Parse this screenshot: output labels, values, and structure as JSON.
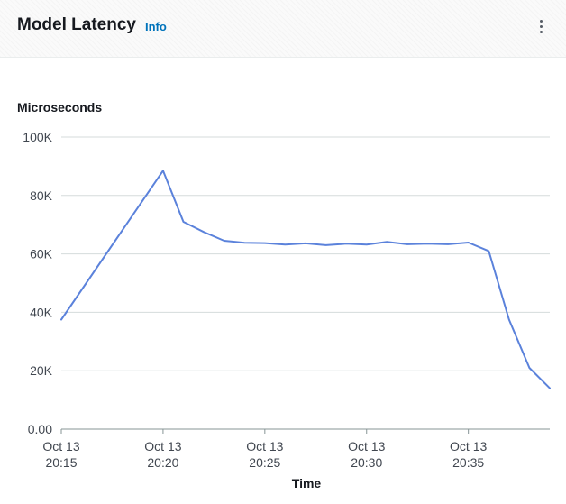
{
  "widget": {
    "title": "Model Latency",
    "info_label": "Info",
    "menu_icon": "kebab-menu-icon"
  },
  "colors": {
    "line": "#5b82db",
    "grid": "#d5dbdb",
    "info": "#0073bb",
    "text": "#16191f"
  },
  "chart_data": {
    "type": "line",
    "title": "Model Latency",
    "ylabel": "Microseconds",
    "xlabel": "Time",
    "ylim": [
      0,
      100000
    ],
    "y_ticks": [
      {
        "value": 0,
        "label": "0.00"
      },
      {
        "value": 20000,
        "label": "20K"
      },
      {
        "value": 40000,
        "label": "40K"
      },
      {
        "value": 60000,
        "label": "60K"
      },
      {
        "value": 80000,
        "label": "80K"
      },
      {
        "value": 100000,
        "label": "100K"
      }
    ],
    "x_ticks": [
      {
        "minute": 0,
        "line1": "Oct 13",
        "line2": "20:15"
      },
      {
        "minute": 5,
        "line1": "Oct 13",
        "line2": "20:20"
      },
      {
        "minute": 10,
        "line1": "Oct 13",
        "line2": "20:25"
      },
      {
        "minute": 15,
        "line1": "Oct 13",
        "line2": "20:30"
      },
      {
        "minute": 20,
        "line1": "Oct 13",
        "line2": "20:35"
      }
    ],
    "xlim_minutes": [
      0,
      24
    ],
    "grid": true,
    "series": [
      {
        "x_minutes": [
          0,
          5,
          6,
          7,
          8,
          9,
          10,
          11,
          12,
          13,
          14,
          15,
          16,
          17,
          18,
          19,
          20,
          21,
          22,
          23,
          24
        ],
        "values": [
          37500,
          88500,
          71000,
          67500,
          64500,
          63800,
          63700,
          63200,
          63600,
          63000,
          63500,
          63200,
          64100,
          63300,
          63500,
          63300,
          63900,
          61000,
          37500,
          21000,
          14000
        ]
      }
    ]
  }
}
